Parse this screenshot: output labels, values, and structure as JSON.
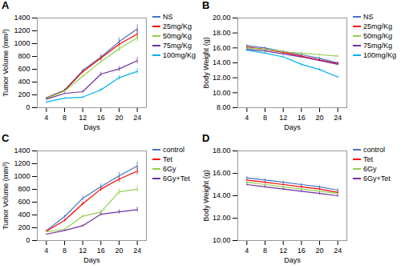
{
  "chart_data": [
    {
      "type": "line",
      "title": "A",
      "xlabel": "Days",
      "ylabel": "Tumor Volume (mm³)",
      "x": [
        4,
        8,
        12,
        16,
        20,
        24
      ],
      "xlim": [
        2,
        26
      ],
      "xticks": [
        4,
        8,
        12,
        16,
        20,
        24
      ],
      "ylim": [
        0,
        1400
      ],
      "yticks": [
        0,
        200,
        400,
        600,
        800,
        1000,
        1200,
        1400
      ],
      "grid": false,
      "legend": "upper right",
      "series": [
        {
          "name": "NS",
          "color": "#4472C4",
          "values": [
            155,
            275,
            580,
            790,
            1030,
            1230
          ],
          "errors": [
            8,
            18,
            28,
            40,
            60,
            65
          ]
        },
        {
          "name": "25mg/Kg",
          "color": "#FF0000",
          "values": [
            150,
            265,
            560,
            775,
            990,
            1150
          ],
          "errors": [
            8,
            16,
            26,
            36,
            52,
            62
          ]
        },
        {
          "name": "50mg/Kg",
          "color": "#92D050",
          "values": [
            145,
            258,
            490,
            720,
            920,
            1090
          ],
          "errors": [
            8,
            15,
            23,
            33,
            48,
            58
          ]
        },
        {
          "name": "75mg/Kg",
          "color": "#7030A0",
          "values": [
            132,
            222,
            250,
            525,
            605,
            735
          ],
          "errors": [
            7,
            13,
            18,
            28,
            38,
            48
          ]
        },
        {
          "name": "100mg/Kg",
          "color": "#00B0F0",
          "values": [
            88,
            148,
            165,
            278,
            468,
            568
          ],
          "errors": [
            6,
            11,
            14,
            23,
            33,
            43
          ]
        }
      ]
    },
    {
      "type": "line",
      "title": "B",
      "xlabel": "Days",
      "ylabel": "Body Weight (g)",
      "x": [
        4,
        8,
        12,
        16,
        20,
        24
      ],
      "xlim": [
        2,
        26
      ],
      "xticks": [
        4,
        8,
        12,
        16,
        20,
        24
      ],
      "ylim": [
        8.0,
        20.0
      ],
      "yticks": [
        {
          "value": 8.0,
          "label": "8.00"
        },
        {
          "value": 10.0,
          "label": "10.00"
        },
        {
          "value": 12.0,
          "label": "12.00"
        },
        {
          "value": 14.0,
          "label": "14.00"
        },
        {
          "value": 16.0,
          "label": "16.00"
        },
        {
          "value": 18.0,
          "label": "18.00"
        },
        {
          "value": 20.0,
          "label": "20.00"
        }
      ],
      "grid": false,
      "legend": "upper right",
      "series": [
        {
          "name": "NS",
          "color": "#4472C4",
          "values": [
            16.3,
            16.0,
            15.5,
            15.1,
            14.6,
            14.0
          ],
          "errors": [
            0.15,
            0.15,
            0.15,
            0.15,
            0.15,
            0.15
          ]
        },
        {
          "name": "25mg/Kg",
          "color": "#FF0000",
          "values": [
            16.1,
            15.8,
            15.4,
            14.9,
            14.4,
            13.9
          ],
          "errors": [
            0.15,
            0.15,
            0.15,
            0.15,
            0.15,
            0.15
          ]
        },
        {
          "name": "50mg/Kg",
          "color": "#92D050",
          "values": [
            16.0,
            15.8,
            15.5,
            15.3,
            15.1,
            14.9
          ],
          "errors": [
            0.15,
            0.15,
            0.15,
            0.15,
            0.15,
            0.15
          ]
        },
        {
          "name": "75mg/Kg",
          "color": "#7030A0",
          "values": [
            15.8,
            15.6,
            15.2,
            14.8,
            14.3,
            13.8
          ],
          "errors": [
            0.15,
            0.15,
            0.15,
            0.15,
            0.15,
            0.15
          ]
        },
        {
          "name": "100mg/Kg",
          "color": "#00B0F0",
          "values": [
            15.7,
            15.3,
            14.8,
            13.8,
            13.1,
            12.1
          ],
          "errors": [
            0.15,
            0.15,
            0.15,
            0.15,
            0.15,
            0.15
          ]
        }
      ]
    },
    {
      "type": "line",
      "title": "C",
      "xlabel": "Days",
      "ylabel": "Tumor Volume (mm³)",
      "x": [
        4,
        8,
        12,
        16,
        20,
        24
      ],
      "xlim": [
        2,
        26
      ],
      "xticks": [
        4,
        8,
        12,
        16,
        20,
        24
      ],
      "ylim": [
        0,
        1400
      ],
      "yticks": [
        0,
        200,
        400,
        600,
        800,
        1000,
        1200,
        1400
      ],
      "grid": false,
      "legend": "upper right",
      "series": [
        {
          "name": "control",
          "color": "#4472C4",
          "values": [
            155,
            375,
            660,
            845,
            1010,
            1165
          ],
          "errors": [
            10,
            22,
            32,
            42,
            52,
            62
          ]
        },
        {
          "name": "Tet",
          "color": "#FF0000",
          "values": [
            148,
            315,
            575,
            805,
            960,
            1085
          ],
          "errors": [
            9,
            20,
            30,
            40,
            48,
            58
          ]
        },
        {
          "name": "6Gy",
          "color": "#92D050",
          "values": [
            140,
            175,
            380,
            445,
            762,
            802
          ],
          "errors": [
            8,
            13,
            23,
            33,
            43,
            48
          ]
        },
        {
          "name": "6Gy+Tet",
          "color": "#7030A0",
          "values": [
            100,
            158,
            232,
            412,
            448,
            482
          ],
          "errors": [
            7,
            11,
            16,
            26,
            33,
            40
          ]
        }
      ]
    },
    {
      "type": "line",
      "title": "D",
      "xlabel": "Days",
      "ylabel": "Body Weight (g)",
      "x": [
        4,
        8,
        12,
        16,
        20,
        24
      ],
      "xlim": [
        2,
        26
      ],
      "xticks": [
        4,
        8,
        12,
        16,
        20,
        24
      ],
      "ylim": [
        10.0,
        18.0
      ],
      "yticks": [
        {
          "value": 10.0,
          "label": "10.00"
        },
        {
          "value": 12.0,
          "label": "12.00"
        },
        {
          "value": 14.0,
          "label": "14.00"
        },
        {
          "value": 16.0,
          "label": "16.00"
        },
        {
          "value": 18.0,
          "label": "18.00"
        }
      ],
      "grid": false,
      "legend": "upper right",
      "series": [
        {
          "name": "control",
          "color": "#4472C4",
          "values": [
            15.6,
            15.4,
            15.2,
            15.0,
            14.8,
            14.5
          ],
          "errors": [
            0.12,
            0.12,
            0.12,
            0.12,
            0.12,
            0.12
          ]
        },
        {
          "name": "Tet",
          "color": "#FF0000",
          "values": [
            15.4,
            15.2,
            15.0,
            14.8,
            14.6,
            14.3
          ],
          "errors": [
            0.12,
            0.12,
            0.12,
            0.12,
            0.12,
            0.12
          ]
        },
        {
          "name": "6Gy",
          "color": "#92D050",
          "values": [
            15.2,
            15.0,
            14.8,
            14.6,
            14.4,
            14.2
          ],
          "errors": [
            0.12,
            0.12,
            0.12,
            0.12,
            0.12,
            0.12
          ]
        },
        {
          "name": "6Gy+Tet",
          "color": "#7030A0",
          "values": [
            15.0,
            14.8,
            14.6,
            14.4,
            14.2,
            14.0
          ],
          "errors": [
            0.12,
            0.12,
            0.12,
            0.12,
            0.12,
            0.12
          ]
        }
      ]
    }
  ]
}
